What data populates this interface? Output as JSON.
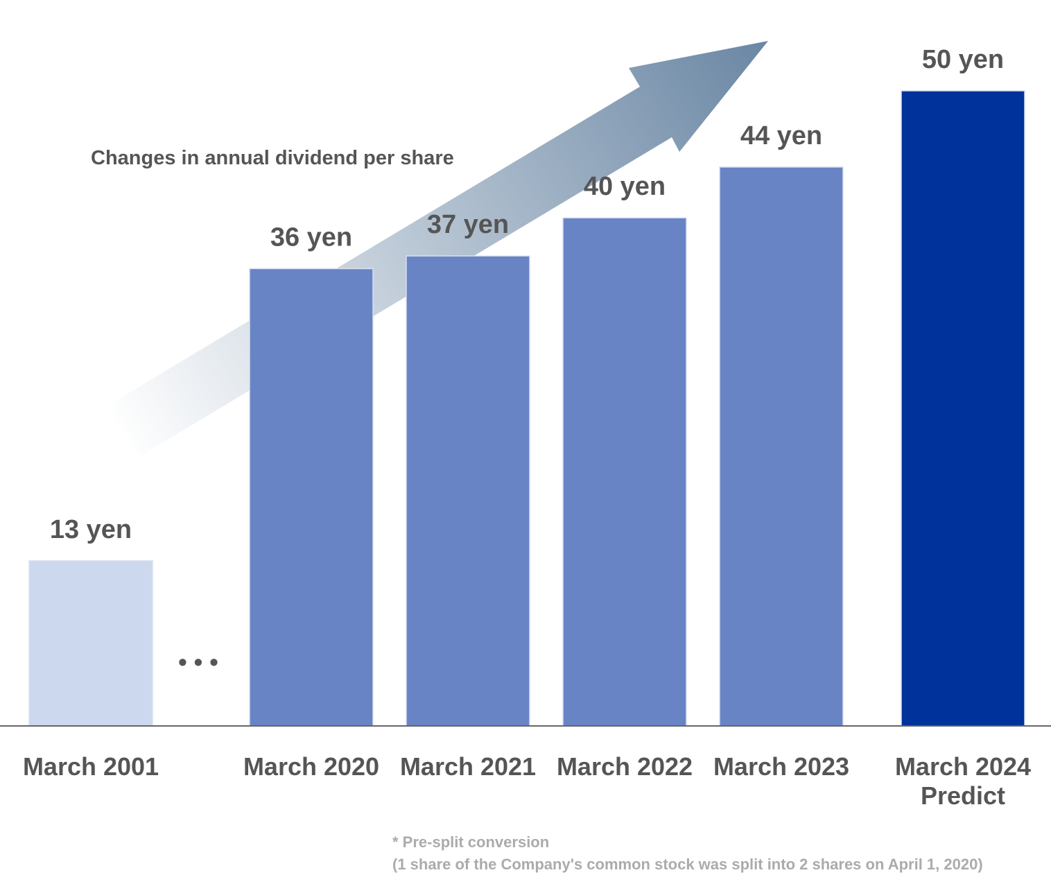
{
  "chart_data": {
    "type": "bar",
    "title": "Changes in annual dividend per share",
    "categories": [
      "March 2001",
      "March 2020",
      "March 2021",
      "March 2022",
      "March 2023",
      "March 2024\nPredict"
    ],
    "values": [
      13,
      36,
      37,
      40,
      44,
      50
    ],
    "value_labels": [
      "13 yen",
      "36 yen",
      "37 yen",
      "40 yen",
      "44 yen",
      "50 yen"
    ],
    "unit": "yen",
    "ylim": [
      0,
      50
    ],
    "grid": false,
    "axis_break_marker": "• • •",
    "bar_colors": [
      "#ccd8ee",
      "#6884c5",
      "#6884c5",
      "#6884c5",
      "#6884c5",
      "#00329c"
    ],
    "arrow_color_start": "#ffffff",
    "arrow_color_end": "#6c88a5",
    "text_color": "#555555"
  },
  "notes": {
    "line1": "* Pre-split conversion",
    "line2": "(1 share of the Company's common stock was split into 2 shares on April 1, 2020)"
  }
}
